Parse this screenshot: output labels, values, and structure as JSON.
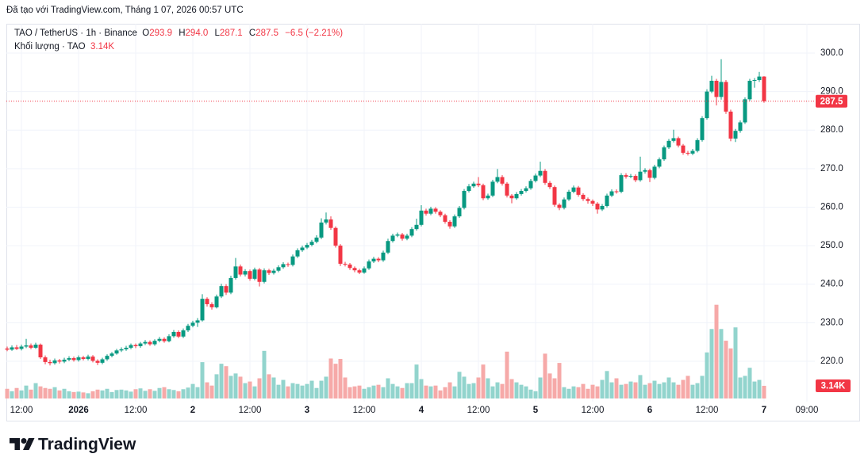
{
  "header": "Đã tạo với TradingView.com, Tháng 1 07, 2026 00:57 UTC",
  "brand": "TradingView",
  "chart_data": {
    "type": "candlestick",
    "symbol": "TAO / TetherUS · 1h · Binance",
    "legend_labels": [
      "O",
      "H",
      "L",
      "C"
    ],
    "legend_values": [
      "293.9",
      "294.0",
      "287.1",
      "287.5"
    ],
    "change": "−6.5 (−2.21%)",
    "volume_title": "Khối lượng · TAO",
    "volume_value_label": "3.14K",
    "open": [
      223.3,
      223.0,
      223.6,
      223.2,
      223.8,
      224.1,
      223.5,
      224.3,
      221.0,
      219.8,
      219.5,
      220.2,
      219.9,
      220.4,
      220.8,
      220.3,
      221.0,
      220.6,
      221.2,
      220.1,
      219.6,
      220.5,
      221.4,
      222.0,
      222.8,
      223.1,
      223.5,
      224.2,
      223.9,
      224.6,
      225.0,
      224.4,
      225.3,
      225.8,
      225.2,
      226.5,
      227.6,
      226.4,
      228.0,
      229.2,
      230.0,
      230.6,
      236.2,
      234.8,
      234.0,
      236.8,
      239.5,
      237.8,
      241.6,
      244.6,
      242.5,
      243.4,
      241.4,
      243.8,
      240.6,
      243.6,
      242.9,
      243.5,
      244.4,
      245.2,
      245.0,
      247.2,
      248.8,
      249.5,
      250.2,
      251.0,
      252.1,
      256.0,
      256.8,
      254.6,
      250.0,
      245.3,
      245.1,
      244.2,
      243.6,
      243.0,
      244.1,
      245.9,
      246.6,
      246.2,
      248.2,
      251.2,
      252.6,
      252.9,
      251.8,
      252.6,
      254.3,
      255.4,
      259.1,
      258.3,
      259.6,
      258.8,
      257.9,
      256.2,
      255.0,
      257.6,
      259.8,
      264.2,
      265.4,
      266.1,
      265.7,
      262.3,
      263.0,
      266.6,
      267.8,
      266.1,
      263.0,
      262.3,
      263.4,
      264.2,
      264.9,
      266.8,
      268.2,
      269.4,
      266.3,
      265.2,
      260.6,
      259.8,
      262.0,
      264.0,
      265.1,
      263.2,
      262.1,
      261.6,
      260.9,
      259.4,
      260.3,
      263.0,
      264.1,
      264.0,
      268.3,
      267.9,
      268.1,
      267.0,
      269.2,
      269.6,
      267.6,
      270.5,
      272.4,
      275.5,
      277.2,
      277.9,
      276.0,
      274.1,
      273.9,
      274.6,
      277.4,
      283.1,
      290.0,
      292.8,
      288.6,
      292.5,
      284.8,
      277.8,
      279.8,
      282.0,
      288.0,
      292.8,
      293.0,
      293.9
    ],
    "high": [
      223.8,
      224.1,
      224.2,
      224.3,
      225.8,
      224.6,
      224.8,
      224.6,
      221.5,
      220.4,
      220.7,
      220.6,
      220.9,
      221.3,
      221.2,
      221.5,
      221.4,
      221.7,
      221.6,
      220.5,
      220.9,
      221.8,
      222.4,
      223.2,
      223.6,
      224.0,
      224.6,
      224.6,
      225.0,
      225.5,
      225.4,
      225.7,
      226.3,
      226.2,
      227.0,
      228.1,
      228.0,
      228.5,
      229.7,
      230.5,
      231.2,
      237.4,
      236.6,
      235.3,
      237.3,
      240.1,
      240.0,
      242.2,
      246.8,
      245.1,
      243.9,
      243.8,
      244.3,
      244.2,
      244.1,
      244.0,
      244.0,
      244.9,
      245.7,
      245.6,
      247.7,
      249.3,
      250.0,
      250.7,
      251.5,
      252.7,
      257.1,
      258.6,
      257.6,
      255.0,
      250.4,
      245.8,
      245.5,
      244.6,
      244.0,
      244.6,
      246.4,
      247.1,
      247.0,
      248.7,
      251.8,
      253.1,
      253.4,
      253.3,
      253.1,
      254.8,
      257.0,
      260.5,
      259.6,
      260.1,
      260.0,
      259.2,
      258.3,
      256.6,
      258.1,
      260.3,
      264.7,
      266.0,
      266.6,
      267.8,
      266.1,
      263.5,
      267.1,
      269.9,
      268.3,
      266.5,
      263.4,
      263.9,
      264.7,
      265.4,
      267.3,
      268.7,
      271.8,
      269.9,
      266.8,
      265.6,
      261.0,
      262.5,
      264.5,
      265.6,
      265.5,
      263.6,
      262.5,
      262.0,
      261.3,
      260.8,
      263.5,
      264.6,
      264.6,
      268.8,
      268.8,
      268.6,
      268.5,
      273.1,
      270.1,
      270.0,
      271.0,
      272.9,
      276.0,
      277.7,
      280.1,
      278.3,
      276.4,
      274.6,
      275.1,
      277.9,
      283.6,
      290.6,
      294.1,
      293.3,
      298.4,
      293.0,
      285.3,
      280.3,
      282.5,
      288.5,
      293.3,
      293.5,
      295.1,
      294.0
    ],
    "low": [
      222.6,
      222.7,
      222.9,
      222.8,
      223.4,
      223.1,
      223.2,
      220.6,
      219.2,
      218.9,
      219.1,
      219.4,
      219.5,
      220.0,
      219.9,
      219.9,
      220.2,
      220.2,
      219.7,
      219.0,
      219.2,
      220.1,
      221.0,
      221.7,
      222.4,
      222.7,
      223.1,
      223.4,
      223.5,
      224.2,
      224.0,
      224.0,
      224.9,
      224.8,
      224.9,
      226.1,
      226.0,
      226.0,
      227.6,
      228.8,
      228.9,
      230.3,
      234.2,
      233.4,
      233.7,
      236.4,
      237.2,
      237.4,
      241.2,
      242.0,
      242.0,
      240.9,
      241.0,
      239.4,
      240.2,
      242.4,
      242.5,
      243.1,
      244.0,
      244.5,
      244.6,
      246.8,
      248.4,
      249.1,
      249.8,
      250.6,
      251.7,
      255.5,
      254.1,
      249.5,
      244.7,
      244.6,
      243.7,
      243.1,
      242.6,
      242.7,
      243.7,
      245.5,
      245.7,
      245.8,
      247.8,
      250.8,
      252.2,
      251.3,
      251.4,
      252.2,
      253.9,
      255.0,
      257.8,
      257.9,
      258.3,
      257.4,
      255.7,
      254.4,
      254.6,
      257.2,
      259.4,
      263.8,
      265.0,
      265.2,
      261.8,
      261.9,
      262.6,
      266.2,
      265.6,
      262.5,
      261.0,
      261.9,
      263.0,
      263.8,
      264.5,
      266.4,
      267.8,
      265.8,
      264.7,
      260.1,
      259.2,
      259.4,
      261.6,
      263.6,
      262.7,
      261.6,
      260.9,
      260.3,
      258.3,
      259.0,
      259.9,
      262.6,
      263.5,
      263.6,
      267.4,
      267.5,
      266.5,
      266.6,
      268.7,
      266.5,
      267.2,
      270.1,
      272.0,
      275.1,
      276.8,
      275.5,
      273.6,
      273.4,
      273.5,
      274.2,
      277.0,
      282.7,
      289.6,
      286.4,
      287.9,
      284.2,
      277.1,
      276.9,
      279.3,
      281.6,
      287.6,
      291.0,
      292.5,
      287.1
    ],
    "close": [
      223.0,
      223.6,
      223.2,
      223.8,
      224.1,
      223.5,
      224.3,
      221.0,
      219.8,
      219.5,
      220.2,
      219.9,
      220.4,
      220.8,
      220.3,
      221.0,
      220.6,
      221.2,
      220.1,
      219.6,
      220.5,
      221.4,
      222.0,
      222.8,
      223.1,
      223.5,
      224.2,
      223.9,
      224.6,
      225.0,
      224.4,
      225.3,
      225.8,
      225.2,
      226.5,
      227.6,
      226.4,
      228.0,
      229.2,
      230.0,
      230.6,
      236.2,
      234.8,
      234.0,
      236.8,
      239.5,
      237.8,
      241.6,
      244.6,
      242.5,
      243.4,
      241.4,
      243.8,
      240.6,
      243.6,
      242.9,
      243.5,
      244.4,
      245.2,
      245.0,
      247.2,
      248.8,
      249.5,
      250.2,
      251.0,
      252.1,
      256.0,
      256.8,
      254.6,
      250.0,
      245.3,
      245.1,
      244.2,
      243.6,
      243.0,
      244.1,
      245.9,
      246.6,
      246.2,
      248.2,
      251.2,
      252.6,
      252.9,
      251.8,
      252.6,
      254.3,
      255.4,
      259.1,
      258.3,
      259.6,
      258.8,
      257.9,
      256.2,
      255.0,
      257.6,
      259.8,
      264.2,
      265.4,
      266.1,
      265.7,
      262.3,
      263.0,
      266.6,
      267.8,
      266.1,
      263.0,
      262.3,
      263.4,
      264.2,
      264.9,
      266.8,
      268.2,
      269.4,
      266.3,
      265.2,
      260.6,
      259.8,
      262.0,
      264.0,
      265.1,
      263.2,
      262.1,
      261.6,
      260.9,
      259.4,
      260.3,
      263.0,
      264.1,
      264.0,
      268.3,
      267.9,
      268.1,
      267.0,
      269.2,
      269.6,
      267.6,
      270.5,
      272.4,
      275.5,
      277.2,
      277.9,
      276.0,
      274.1,
      273.9,
      274.6,
      277.4,
      283.1,
      290.0,
      292.8,
      288.6,
      292.5,
      284.8,
      277.8,
      279.8,
      282.0,
      288.0,
      292.8,
      293.0,
      293.9,
      287.5
    ],
    "volume": [
      2400,
      1800,
      2600,
      2000,
      3200,
      2200,
      3800,
      3000,
      2600,
      2400,
      2800,
      2000,
      2400,
      1800,
      1600,
      1700,
      1500,
      1300,
      1800,
      2200,
      2000,
      2400,
      1600,
      2100,
      2200,
      2000,
      1700,
      2300,
      2500,
      1900,
      2300,
      1900,
      2600,
      2800,
      2300,
      2100,
      1800,
      2300,
      2700,
      3600,
      2800,
      9000,
      4000,
      3200,
      6000,
      8600,
      8000,
      5600,
      6200,
      5400,
      3800,
      4200,
      3000,
      5000,
      11800,
      6000,
      5200,
      3400,
      4600,
      3000,
      3800,
      3600,
      3200,
      3600,
      4400,
      2600,
      4400,
      5400,
      9900,
      8600,
      9800,
      5200,
      2800,
      3000,
      3200,
      2400,
      2800,
      3200,
      3400,
      2800,
      5000,
      3600,
      3000,
      2600,
      3800,
      3800,
      8400,
      4800,
      3200,
      3000,
      3200,
      2000,
      2800,
      4000,
      3000,
      6600,
      5400,
      3600,
      3800,
      5200,
      8400,
      5000,
      3000,
      4000,
      3600,
      11600,
      4800,
      4000,
      3400,
      3000,
      2200,
      1800,
      5200,
      11100,
      6200,
      5000,
      8800,
      2800,
      2400,
      3000,
      2800,
      3600,
      2400,
      3400,
      3000,
      4600,
      6800,
      4000,
      5000,
      3400,
      3600,
      4200,
      4000,
      5800,
      3400,
      3800,
      4400,
      3600,
      4000,
      5200,
      4000,
      3400,
      4600,
      5600,
      3400,
      3800,
      5600,
      11400,
      17200,
      23200,
      17200,
      14300,
      12400,
      17600,
      5200,
      5600,
      7600,
      4200,
      4600,
      3140
    ],
    "up_color": "#089981",
    "down_color": "#f23645",
    "volume_up_color": "#92d4cd",
    "volume_down_color": "#f6a9a8",
    "xlim": [
      -0.17,
      169.67
    ],
    "xticks": [
      {
        "value": 3,
        "label": "12:00"
      },
      {
        "value": 15,
        "label": "2026"
      },
      {
        "value": 27,
        "label": "12:00"
      },
      {
        "value": 39,
        "label": "2"
      },
      {
        "value": 51,
        "label": "12:00"
      },
      {
        "value": 63,
        "label": "3"
      },
      {
        "value": 75,
        "label": "12:00"
      },
      {
        "value": 87,
        "label": "4"
      },
      {
        "value": 99,
        "label": "12:00"
      },
      {
        "value": 111,
        "label": "5"
      },
      {
        "value": 123,
        "label": "12:00"
      },
      {
        "value": 135,
        "label": "6"
      },
      {
        "value": 147,
        "label": "12:00"
      },
      {
        "value": 159,
        "label": "7"
      },
      {
        "value": 168,
        "label": "09:00"
      }
    ],
    "ylim": [
      209.5,
      307.6
    ],
    "yticks": [
      {
        "value": 220,
        "label": "220.0"
      },
      {
        "value": 230,
        "label": "230.0"
      },
      {
        "value": 240,
        "label": "240.0"
      },
      {
        "value": 250,
        "label": "250.0"
      },
      {
        "value": 260,
        "label": "260.0"
      },
      {
        "value": 270,
        "label": "270.0"
      },
      {
        "value": 280,
        "label": "280.0"
      },
      {
        "value": 290,
        "label": "290.0"
      },
      {
        "value": 300,
        "label": "300.0"
      }
    ],
    "vlim": [
      0,
      25000
    ],
    "grid": true
  }
}
